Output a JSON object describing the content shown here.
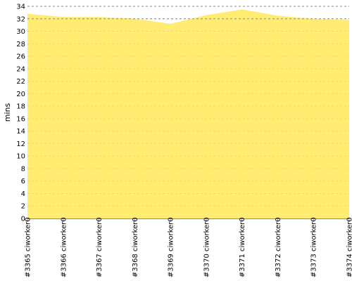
{
  "chart_data": {
    "type": "area",
    "title": "",
    "xlabel": "",
    "ylabel": "mins",
    "categories": [
      "#3365 ciworker0",
      "#3366 ciworker0",
      "#3367 ciworker0",
      "#3368 ciworker0",
      "#3369 ciworker0",
      "#3370 ciworker0",
      "#3371 ciworker0",
      "#3372 ciworker0",
      "#3373 ciworker0",
      "#3374 ciworker0"
    ],
    "series": [
      {
        "values": [
          32.8,
          32.3,
          32.3,
          32.0,
          31.2,
          32.6,
          33.5,
          32.5,
          32.0,
          31.8
        ]
      }
    ],
    "ylim": [
      0,
      34
    ],
    "yticks": [
      0,
      2,
      4,
      6,
      8,
      10,
      12,
      14,
      16,
      18,
      20,
      22,
      24,
      26,
      28,
      30,
      32,
      34
    ],
    "grid": true,
    "fill_color": "#ffec70",
    "grid_color": "#cccccc",
    "major_grid_color": "#888888",
    "axis_color": "#888888"
  }
}
